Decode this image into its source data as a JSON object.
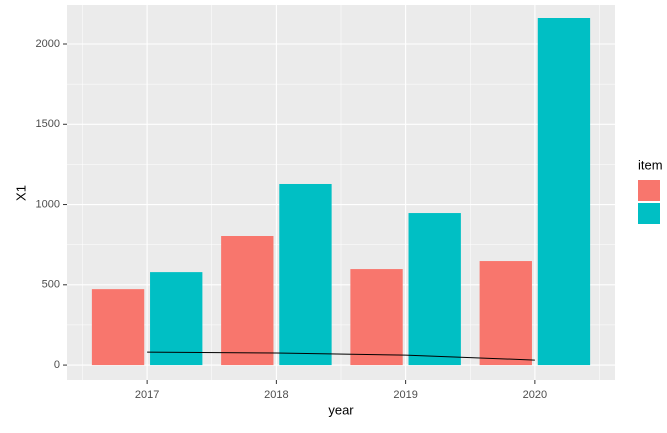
{
  "chart_data": {
    "type": "bar",
    "x_label": "year",
    "y_label": "X1",
    "legend_title": "item",
    "x": [
      2017,
      2018,
      2019,
      2020
    ],
    "series": [
      {
        "color": "#f8766d",
        "values": [
          473,
          804,
          598,
          648
        ]
      },
      {
        "color": "#00bfc4",
        "values": [
          579,
          1128,
          947,
          2162
        ]
      },
      {
        "type": "line",
        "color": "#000000",
        "values": [
          81,
          75,
          62,
          31
        ]
      }
    ],
    "xlim": [
      2016.38,
      2020.62
    ],
    "xticks": [
      2017,
      2018,
      2019,
      2020
    ],
    "ylim": [
      -93,
      2243
    ],
    "yticks": [
      0,
      500,
      1000,
      1500,
      2000
    ],
    "grid": true
  }
}
